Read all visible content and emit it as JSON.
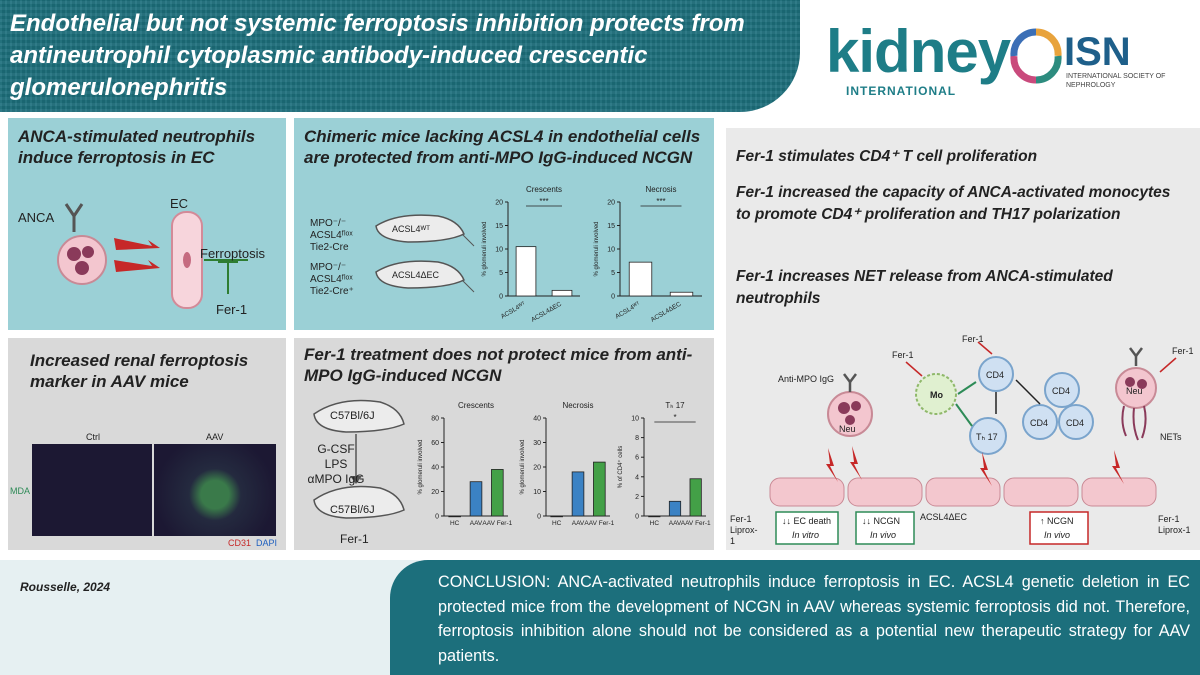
{
  "header": {
    "title": "Endothelial but not systemic ferroptosis inhibition protects from antineutrophil cytoplasmic antibody-induced crescentic glomerulonephritis"
  },
  "logos": {
    "journal": "kidney",
    "journal_sub": "INTERNATIONAL",
    "society": "ISN",
    "society_sub": "INTERNATIONAL SOCIETY OF NEPHROLOGY"
  },
  "panel1": {
    "title": "ANCA-stimulated neutrophils induce ferroptosis in EC",
    "anca": "ANCA",
    "ec": "EC",
    "ferroptosis": "Ferroptosis",
    "fer1": "Fer-1"
  },
  "panel2": {
    "title": "Chimeric mice lacking ACSL4 in endothelial cells are protected from anti-MPO IgG-induced NCGN",
    "mouse1_label": "MPO⁻/⁻ ACSL4ᶠˡᵒˣ Tie2-Cre",
    "mouse2_label": "MPO⁻/⁻ ACSL4ᶠˡᵒˣ Tie2-Cre⁺",
    "mouse1_body": "ACSL4ᵂᵀ",
    "mouse2_body": "ACSL4ΔEC"
  },
  "panel3": {
    "title": "Increased renal ferroptosis marker in AAV mice",
    "ctrl": "Ctrl",
    "aav": "AAV",
    "mda": "MDA",
    "cd31": "CD31",
    "dapi": "DAPI"
  },
  "panel4": {
    "title": "Fer-1 treatment does not protect mice from anti-MPO IgG-induced NCGN",
    "mouse_strain": "C57Bl/6J",
    "treatment": "G-CSF LPS αMPO IgG",
    "fer1": "Fer-1"
  },
  "right": {
    "b1": "Fer-1 stimulates CD4⁺ T cell proliferation",
    "b2": "Fer-1 increased the capacity of ANCA-activated monocytes to promote CD4⁺ proliferation and TH17 polarization",
    "b3": "Fer-1 increases NET release from ANCA-stimulated neutrophils",
    "anti_mpo": "Anti-MPO IgG",
    "fer1": "Fer-1",
    "mo": "Mo",
    "neu": "Neu",
    "cd4": "CD4",
    "th17": "Tₕ 17",
    "nets": "NETs",
    "box1_l1": "↓↓ EC death",
    "box1_l2": "In vitro",
    "box2_l1": "↓↓ NCGN",
    "box2_l2": "In vivo",
    "box3_l1": "↑ NCGN",
    "box3_l2": "In vivo",
    "acsl4": "ACSL4ΔEC",
    "left_drugs": "Fer-1 Liprox-1",
    "right_drugs": "Fer-1 Liprox-1"
  },
  "footer": {
    "author": "Rousselle, 2024",
    "conclusion": "CONCLUSION: ANCA-activated neutrophils induce ferroptosis in EC. ACSL4 genetic deletion in EC protected mice from the development of NCGN in AAV whereas systemic ferroptosis did not. Therefore, ferroptosis inhibition alone should not be considered as a potential new therapeutic strategy for AAV patients."
  },
  "chart_data": [
    {
      "type": "bar",
      "title": "Crescents",
      "ylabel": "% glomeruli involved",
      "categories": [
        "ACSL4ᵂᵀ",
        "ACSL4ΔEC"
      ],
      "values": [
        10.5,
        1.2
      ],
      "ylim": [
        0,
        20
      ],
      "yticks": [
        "0",
        "5",
        "10",
        "15",
        "20"
      ],
      "significance": "***"
    },
    {
      "type": "bar",
      "title": "Necrosis",
      "ylabel": "% glomeruli involved",
      "categories": [
        "ACSL4ᵂᵀ",
        "ACSL4ΔEC"
      ],
      "values": [
        7.2,
        0.8
      ],
      "ylim": [
        0,
        20
      ],
      "yticks": [
        "0",
        "5",
        "10",
        "15",
        "20"
      ],
      "significance": "***"
    },
    {
      "type": "bar",
      "title": "Crescents",
      "ylabel": "% glomeruli involved",
      "categories": [
        "HC",
        "AAV",
        "AAV Fer-1"
      ],
      "values": [
        0,
        28,
        38
      ],
      "ylim": [
        0,
        80
      ],
      "yticks": [
        "0",
        "20",
        "40",
        "60",
        "80"
      ]
    },
    {
      "type": "bar",
      "title": "Necrosis",
      "ylabel": "% glomeruli involved",
      "categories": [
        "HC",
        "AAV",
        "AAV Fer-1"
      ],
      "values": [
        0,
        18,
        22
      ],
      "ylim": [
        0,
        40
      ],
      "yticks": [
        "0",
        "10",
        "20",
        "30",
        "40"
      ]
    },
    {
      "type": "bar",
      "title": "Tₕ 17",
      "ylabel": "% of CD4⁺ cells",
      "categories": [
        "HC",
        "AAV",
        "AAV Fer-1"
      ],
      "values": [
        0,
        1.5,
        3.8
      ],
      "ylim": [
        0,
        10
      ],
      "yticks": [
        "0",
        "2",
        "4",
        "6",
        "8",
        "10"
      ],
      "significance": "*"
    }
  ]
}
